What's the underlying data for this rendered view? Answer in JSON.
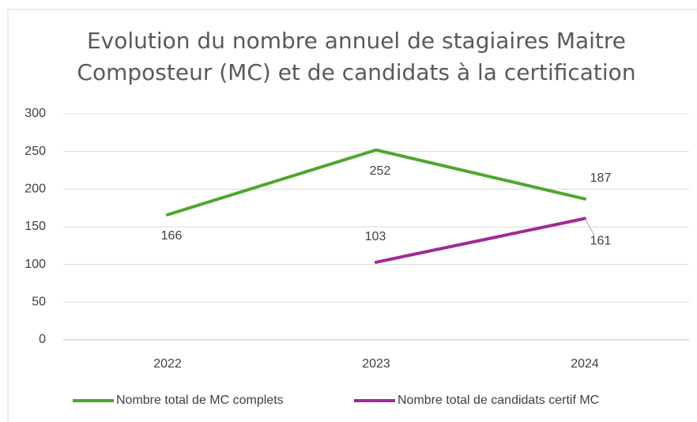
{
  "chart_data": {
    "type": "line",
    "title": "Evolution du nombre annuel de stagiaires Maitre Composteur (MC) et de candidats à la certification",
    "categories": [
      "2022",
      "2023",
      "2024"
    ],
    "series": [
      {
        "name": "Nombre total de MC complets",
        "color": "#4ea72e",
        "values": [
          166,
          252,
          187
        ]
      },
      {
        "name": "Nombre total de candidats certif MC",
        "color": "#a02b93",
        "values": [
          null,
          103,
          161
        ]
      }
    ],
    "ylim": [
      0,
      300
    ],
    "yticks": [
      0,
      50,
      100,
      150,
      200,
      250,
      300
    ],
    "grid": true,
    "legend": "bottom"
  }
}
